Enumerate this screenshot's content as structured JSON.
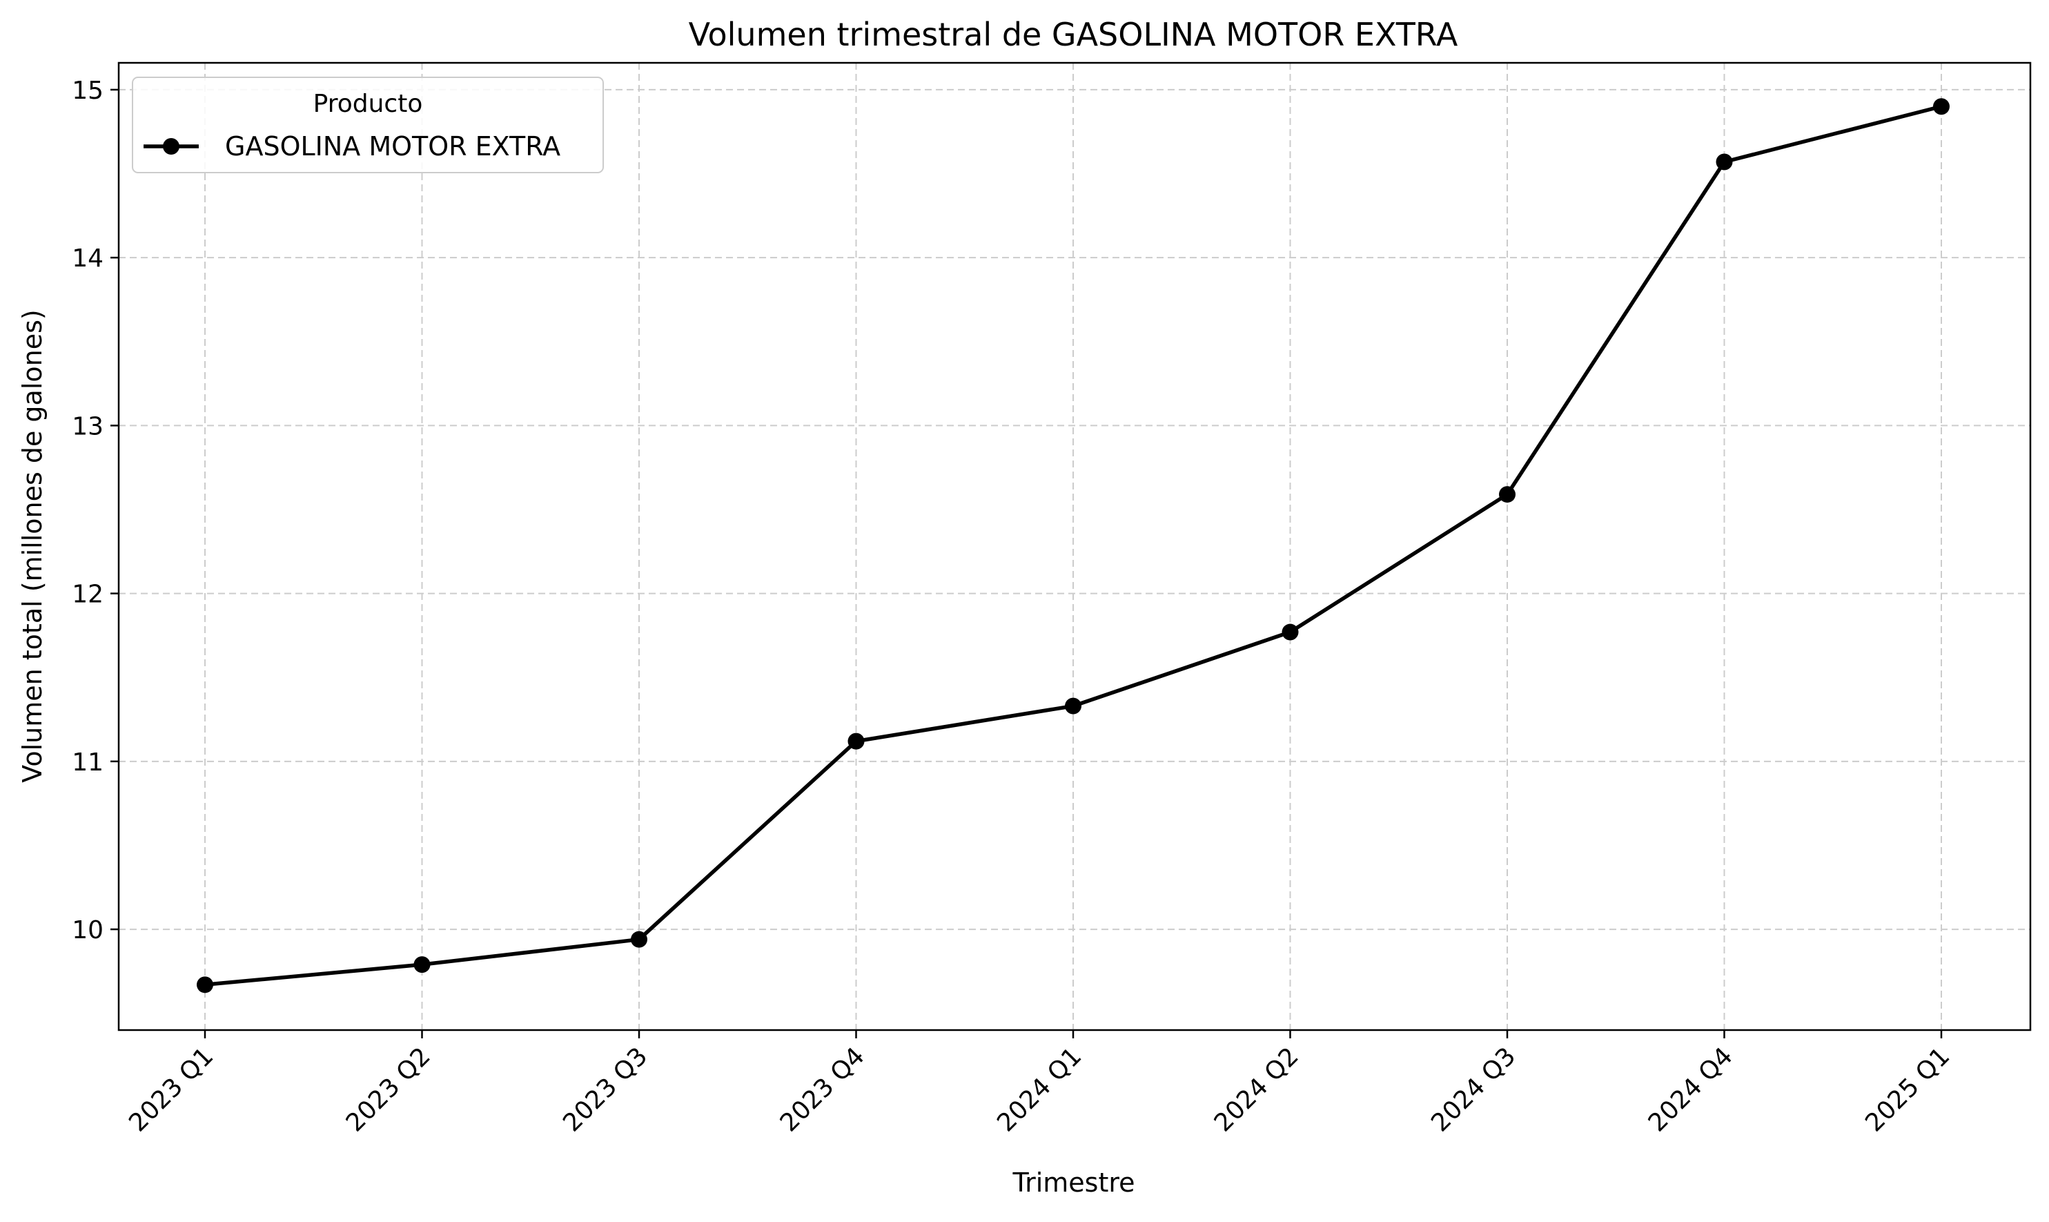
{
  "chart_data": {
    "type": "line",
    "title": "Volumen trimestral de GASOLINA MOTOR EXTRA",
    "xlabel": "Trimestre",
    "ylabel": "Volumen total (millones de galones)",
    "categories": [
      "2023 Q1",
      "2023 Q2",
      "2023 Q3",
      "2023 Q4",
      "2024 Q1",
      "2024 Q2",
      "2024 Q3",
      "2024 Q4",
      "2025 Q1"
    ],
    "series": [
      {
        "name": "GASOLINA MOTOR EXTRA",
        "values": [
          9.67,
          9.79,
          9.94,
          11.12,
          11.33,
          11.77,
          12.59,
          14.57,
          14.9
        ],
        "color": "#000000",
        "marker": "circle"
      }
    ],
    "ylim": [
      9.4,
      15.16
    ],
    "yticks": [
      10,
      11,
      12,
      13,
      14,
      15
    ],
    "grid": true,
    "legend": {
      "title": "Producto",
      "placement": "top-left"
    }
  }
}
